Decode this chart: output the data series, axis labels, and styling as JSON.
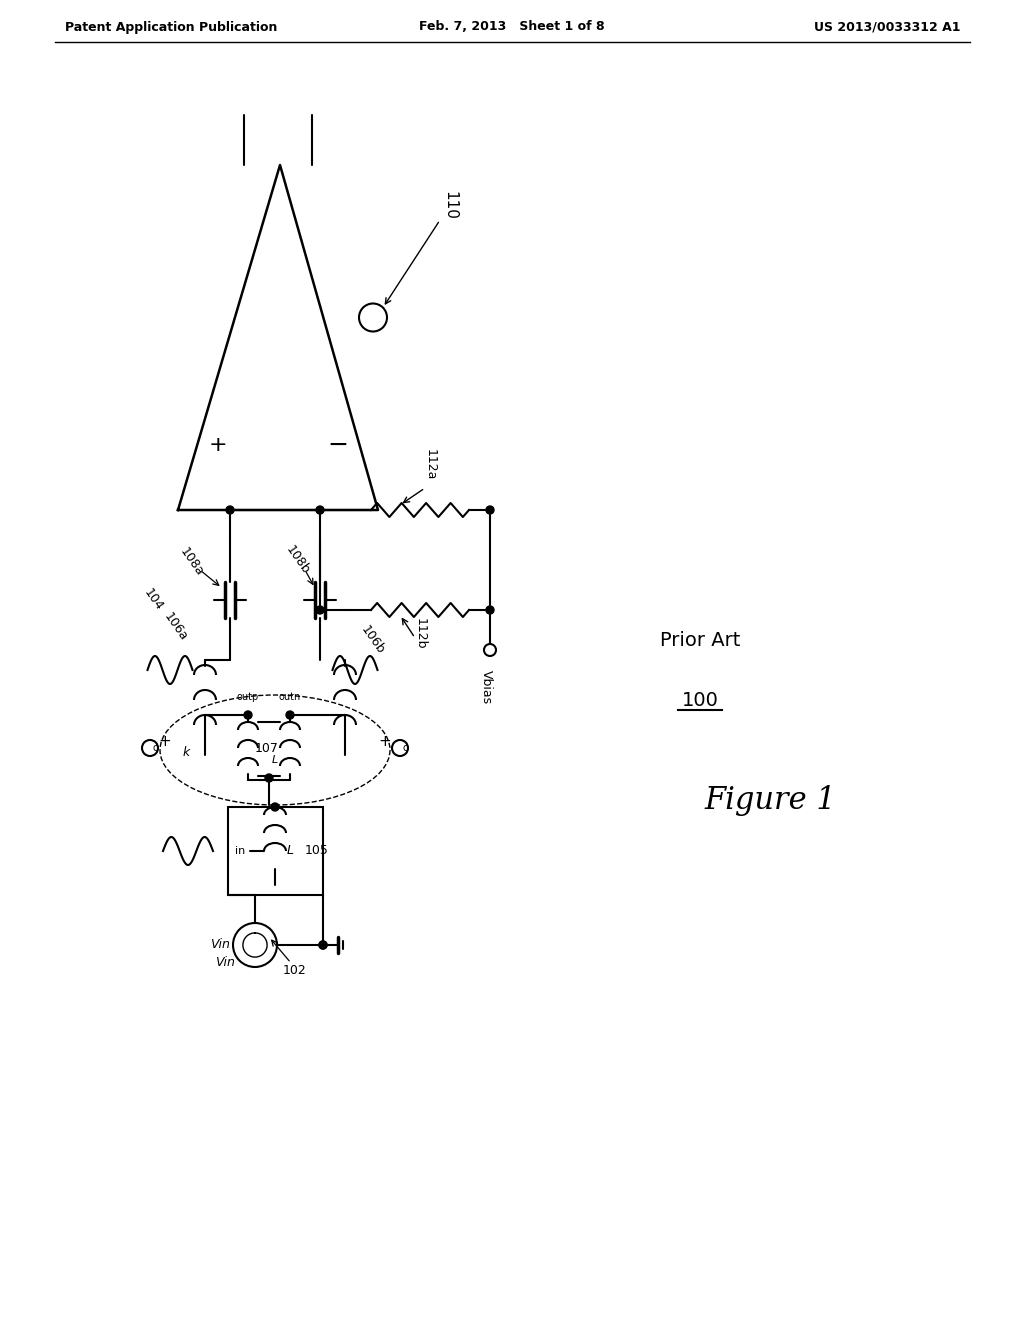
{
  "bg_color": "#ffffff",
  "header_left": "Patent Application Publication",
  "header_mid": "Feb. 7, 2013   Sheet 1 of 8",
  "header_right": "US 2013/0033312 A1"
}
